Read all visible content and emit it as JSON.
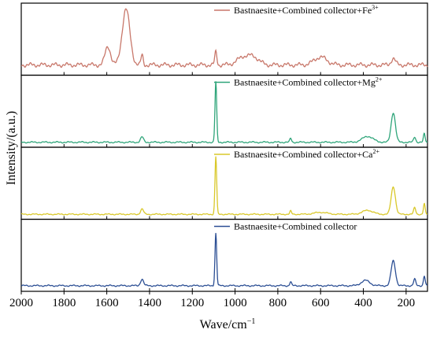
{
  "chart_data": {
    "type": "line",
    "xlabel": "Wave/cm",
    "xlabel_sup": "−1",
    "ylabel": "Intensity/(a.u.)",
    "x_reversed": true,
    "xlim": [
      2000,
      100
    ],
    "xticks": [
      2000,
      1800,
      1600,
      1400,
      1200,
      1000,
      800,
      600,
      400,
      200
    ],
    "stacked_panels": 4,
    "grid": false,
    "series": [
      {
        "name": "Bastnaesite+Combined collector+Fe",
        "sup": "3+",
        "color": "#c8776a",
        "baseline": 0.12,
        "ripple": 0.035,
        "peaks": [
          {
            "x": 1595,
            "h": 0.28,
            "w": 13
          },
          {
            "x": 1510,
            "h": 0.85,
            "w": 18
          },
          {
            "x": 1435,
            "h": 0.15,
            "w": 5
          },
          {
            "x": 1090,
            "h": 0.2,
            "w": 5
          },
          {
            "x": 960,
            "h": 0.12,
            "w": 30
          },
          {
            "x": 910,
            "h": 0.1,
            "w": 25
          },
          {
            "x": 600,
            "h": 0.12,
            "w": 30
          },
          {
            "x": 260,
            "h": 0.1,
            "w": 10
          }
        ]
      },
      {
        "name": "Bastnaesite+Combined collector+Mg",
        "sup": "2+",
        "color": "#2fa57a",
        "baseline": 0.04,
        "ripple": 0.012,
        "peaks": [
          {
            "x": 1435,
            "h": 0.08,
            "w": 7
          },
          {
            "x": 1090,
            "h": 0.92,
            "w": 4
          },
          {
            "x": 740,
            "h": 0.06,
            "w": 4
          },
          {
            "x": 380,
            "h": 0.09,
            "w": 25
          },
          {
            "x": 260,
            "h": 0.45,
            "w": 10
          },
          {
            "x": 160,
            "h": 0.08,
            "w": 5
          },
          {
            "x": 115,
            "h": 0.13,
            "w": 4
          }
        ]
      },
      {
        "name": "Bastnaesite+Combined collector+Ca",
        "sup": "2+",
        "color": "#d9c82a",
        "baseline": 0.04,
        "ripple": 0.01,
        "peaks": [
          {
            "x": 1435,
            "h": 0.08,
            "w": 7
          },
          {
            "x": 1090,
            "h": 0.88,
            "w": 4
          },
          {
            "x": 740,
            "h": 0.05,
            "w": 4
          },
          {
            "x": 600,
            "h": 0.03,
            "w": 30
          },
          {
            "x": 380,
            "h": 0.06,
            "w": 25
          },
          {
            "x": 260,
            "h": 0.42,
            "w": 10
          },
          {
            "x": 160,
            "h": 0.1,
            "w": 5
          },
          {
            "x": 115,
            "h": 0.16,
            "w": 4
          }
        ]
      },
      {
        "name": "Bastnaesite+Combined collector",
        "sup": "",
        "color": "#2c4f94",
        "baseline": 0.05,
        "ripple": 0.012,
        "peaks": [
          {
            "x": 1435,
            "h": 0.1,
            "w": 7
          },
          {
            "x": 1090,
            "h": 0.8,
            "w": 4
          },
          {
            "x": 740,
            "h": 0.06,
            "w": 4
          },
          {
            "x": 390,
            "h": 0.08,
            "w": 20
          },
          {
            "x": 260,
            "h": 0.38,
            "w": 10
          },
          {
            "x": 160,
            "h": 0.1,
            "w": 5
          },
          {
            "x": 115,
            "h": 0.15,
            "w": 4
          }
        ]
      }
    ]
  }
}
